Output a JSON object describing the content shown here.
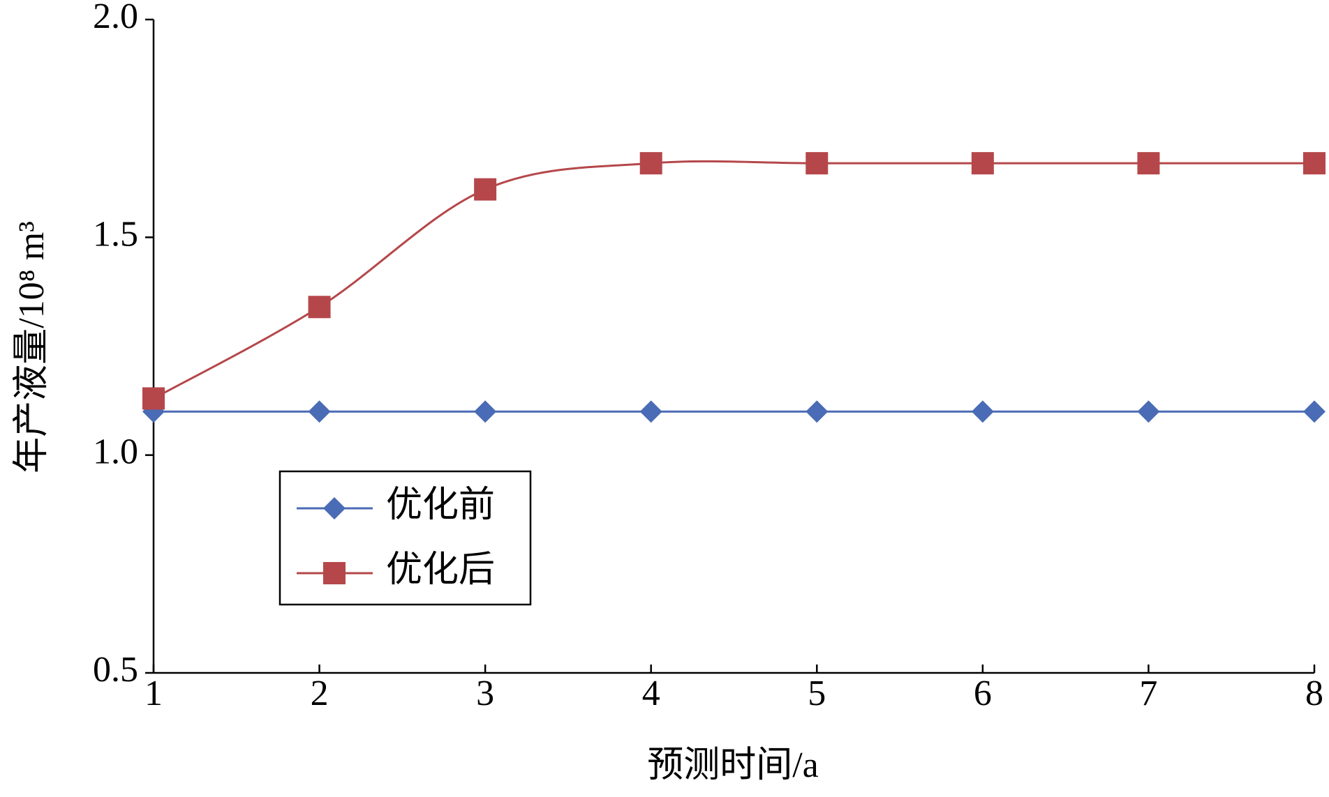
{
  "chart_data": {
    "type": "line",
    "x_label": "预测时间/a",
    "y_label": "年产液量/10⁸ m³",
    "x": [
      1,
      2,
      3,
      4,
      5,
      6,
      7,
      8
    ],
    "series": [
      {
        "name": "优化前",
        "color": "#4a6bb5",
        "marker": "diamond",
        "values": [
          1.1,
          1.1,
          1.1,
          1.1,
          1.1,
          1.1,
          1.1,
          1.1
        ]
      },
      {
        "name": "优化后",
        "color": "#b5474a",
        "marker": "square",
        "values": [
          1.13,
          1.34,
          1.61,
          1.67,
          1.67,
          1.67,
          1.67,
          1.67
        ]
      }
    ],
    "xlim": [
      1,
      8
    ],
    "xticks": [
      1,
      2,
      3,
      4,
      5,
      6,
      7,
      8
    ],
    "ylim": [
      0.5,
      2.0
    ],
    "yticks": [
      {
        "value": 0.5,
        "label": "0.5"
      },
      {
        "value": 1.0,
        "label": "1.0"
      },
      {
        "value": 1.5,
        "label": "1.5"
      },
      {
        "value": 2.0,
        "label": "2.0"
      }
    ],
    "smooth": true
  }
}
